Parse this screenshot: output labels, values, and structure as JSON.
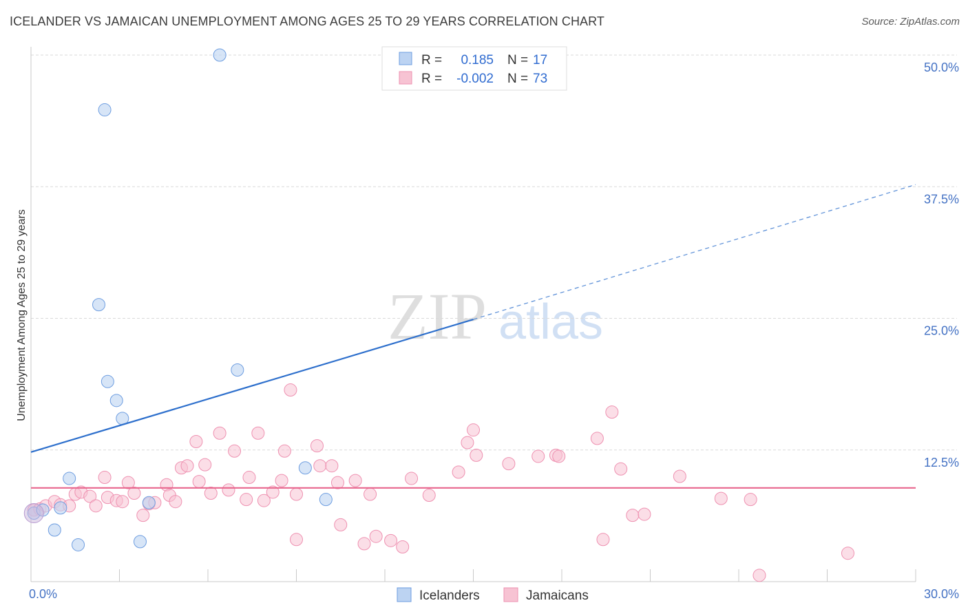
{
  "title": "ICELANDER VS JAMAICAN UNEMPLOYMENT AMONG AGES 25 TO 29 YEARS CORRELATION CHART",
  "source": "Source: ZipAtlas.com",
  "watermark": {
    "zip": "ZIP",
    "atlas": "atlas"
  },
  "legend_top": [
    {
      "r_label": "R =",
      "r_value": "0.185",
      "n_label": "N =",
      "n_value": "17"
    },
    {
      "r_label": "R =",
      "r_value": "-0.002",
      "n_label": "N =",
      "n_value": "73"
    }
  ],
  "legend_bottom": [
    "Icelanders",
    "Jamaicans"
  ],
  "colors": {
    "icelanders_fill": "#bcd3f2",
    "icelanders_stroke": "#6d9de0",
    "icelanders_line": "#2d6fcc",
    "jamaicans_fill": "#f7c3d3",
    "jamaicans_stroke": "#ee90b0",
    "jamaicans_line": "#e8658d",
    "axis_tick": "#4472c4",
    "grid": "#d9d9d9"
  },
  "chart_data": {
    "type": "scatter",
    "title": "ICELANDER VS JAMAICAN UNEMPLOYMENT AMONG AGES 25 TO 29 YEARS CORRELATION CHART",
    "xlabel": "",
    "ylabel": "Unemployment Among Ages 25 to 29 years",
    "xlim": [
      0,
      30
    ],
    "ylim": [
      0,
      50
    ],
    "x_tick_labels": [
      "0.0%",
      "30.0%"
    ],
    "y_ticks": [
      12.5,
      25.0,
      37.5,
      50.0
    ],
    "y_tick_labels": [
      "12.5%",
      "25.0%",
      "37.5%",
      "50.0%"
    ],
    "grid": true,
    "legend_position": "top-center",
    "series": [
      {
        "name": "Icelanders",
        "r": 0.185,
        "n": 17,
        "points": [
          [
            0.1,
            6.5
          ],
          [
            0.4,
            6.8
          ],
          [
            0.8,
            4.9
          ],
          [
            1.0,
            7.0
          ],
          [
            1.3,
            9.8
          ],
          [
            1.6,
            3.5
          ],
          [
            2.3,
            26.3
          ],
          [
            2.5,
            44.8
          ],
          [
            2.6,
            19.0
          ],
          [
            2.9,
            17.2
          ],
          [
            3.1,
            15.5
          ],
          [
            3.7,
            3.8
          ],
          [
            4.0,
            7.5
          ],
          [
            6.4,
            50.0
          ],
          [
            7.0,
            20.1
          ],
          [
            9.3,
            10.8
          ],
          [
            10.0,
            7.8
          ]
        ],
        "trend": {
          "x": [
            0,
            15
          ],
          "y": [
            12.3,
            24.9
          ],
          "dashed_extension": {
            "x": [
              15,
              30
            ],
            "y": [
              24.9,
              37.7
            ]
          }
        }
      },
      {
        "name": "Jamaicans",
        "r": -0.002,
        "n": 73,
        "points": [
          [
            0.1,
            6.8
          ],
          [
            0.3,
            6.9
          ],
          [
            0.5,
            7.2
          ],
          [
            0.8,
            7.6
          ],
          [
            1.0,
            7.3
          ],
          [
            1.3,
            7.2
          ],
          [
            1.5,
            8.3
          ],
          [
            1.7,
            8.5
          ],
          [
            2.0,
            8.1
          ],
          [
            2.2,
            7.2
          ],
          [
            2.5,
            9.9
          ],
          [
            2.6,
            8.0
          ],
          [
            2.9,
            7.7
          ],
          [
            3.1,
            7.6
          ],
          [
            3.3,
            9.4
          ],
          [
            3.5,
            8.4
          ],
          [
            3.8,
            6.3
          ],
          [
            4.0,
            7.4
          ],
          [
            4.2,
            7.5
          ],
          [
            4.6,
            9.2
          ],
          [
            4.7,
            8.2
          ],
          [
            4.9,
            7.6
          ],
          [
            5.1,
            10.8
          ],
          [
            5.3,
            11.0
          ],
          [
            5.6,
            13.3
          ],
          [
            5.7,
            9.5
          ],
          [
            5.9,
            11.1
          ],
          [
            6.1,
            8.4
          ],
          [
            6.4,
            14.1
          ],
          [
            6.7,
            8.7
          ],
          [
            6.9,
            12.4
          ],
          [
            7.3,
            7.8
          ],
          [
            7.4,
            9.9
          ],
          [
            7.7,
            14.1
          ],
          [
            7.9,
            7.7
          ],
          [
            8.2,
            8.5
          ],
          [
            8.5,
            9.6
          ],
          [
            8.6,
            12.4
          ],
          [
            8.8,
            18.2
          ],
          [
            9.0,
            8.3
          ],
          [
            9.0,
            4.0
          ],
          [
            9.7,
            12.9
          ],
          [
            9.8,
            11.0
          ],
          [
            10.2,
            11.0
          ],
          [
            10.4,
            9.4
          ],
          [
            10.5,
            5.4
          ],
          [
            11.0,
            9.6
          ],
          [
            11.3,
            3.6
          ],
          [
            11.5,
            8.3
          ],
          [
            11.7,
            4.3
          ],
          [
            12.2,
            3.9
          ],
          [
            12.6,
            3.3
          ],
          [
            12.9,
            9.8
          ],
          [
            13.5,
            8.2
          ],
          [
            14.5,
            10.4
          ],
          [
            14.8,
            13.2
          ],
          [
            15.0,
            14.4
          ],
          [
            15.1,
            12.0
          ],
          [
            16.2,
            11.2
          ],
          [
            17.2,
            11.9
          ],
          [
            17.8,
            12.0
          ],
          [
            17.9,
            11.9
          ],
          [
            19.2,
            13.6
          ],
          [
            19.4,
            4.0
          ],
          [
            19.7,
            16.1
          ],
          [
            20.0,
            10.7
          ],
          [
            20.4,
            6.3
          ],
          [
            20.8,
            6.4
          ],
          [
            22.0,
            10.0
          ],
          [
            23.4,
            7.9
          ],
          [
            24.4,
            7.8
          ],
          [
            24.7,
            0.6
          ],
          [
            27.7,
            2.7
          ]
        ],
        "trend": {
          "x": [
            0,
            30
          ],
          "y": [
            8.9,
            8.9
          ]
        }
      }
    ]
  }
}
